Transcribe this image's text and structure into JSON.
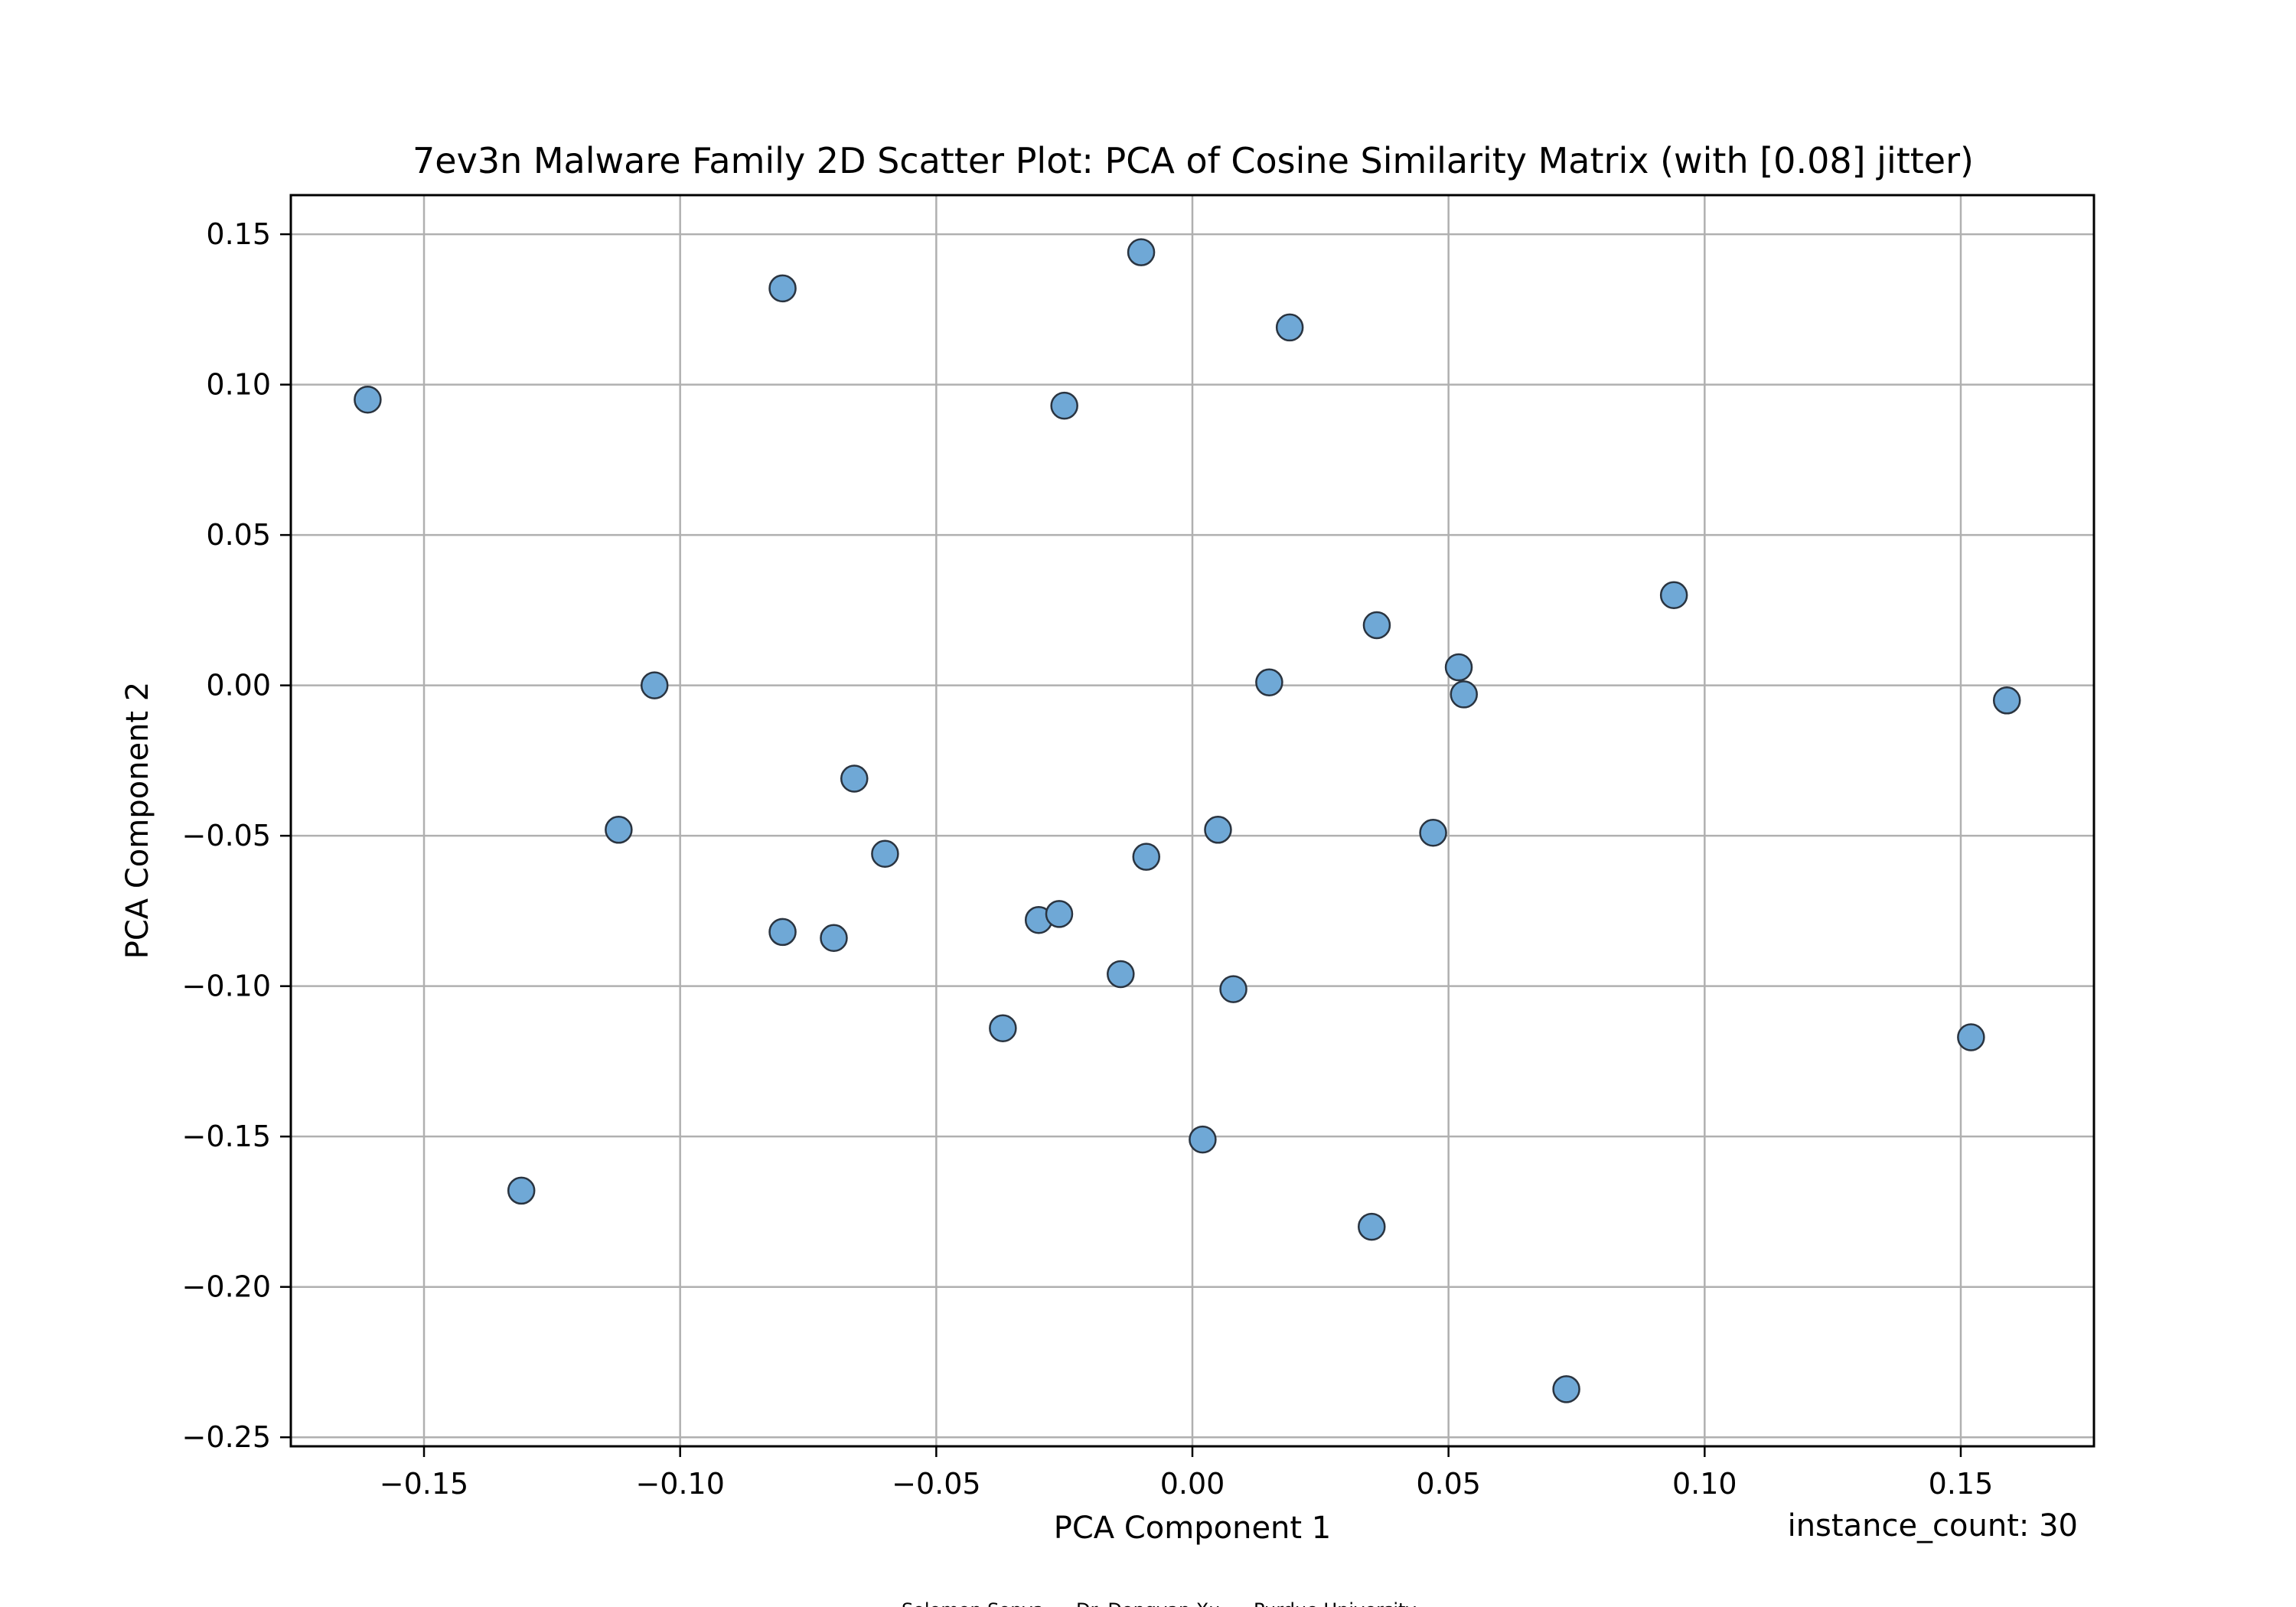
{
  "chart_data": {
    "type": "scatter",
    "title": "7ev3n Malware Family 2D Scatter Plot: PCA of Cosine Similarity Matrix (with [0.08] jitter)",
    "xlabel": "PCA Component 1",
    "ylabel": "PCA Component 2",
    "xlim": [
      -0.176,
      0.176
    ],
    "ylim": [
      -0.253,
      0.163
    ],
    "grid": true,
    "xticks": [
      -0.15,
      -0.1,
      -0.05,
      0.0,
      0.05,
      0.1,
      0.15
    ],
    "xtick_labels": [
      "−0.15",
      "−0.10",
      "−0.05",
      "0.00",
      "0.05",
      "0.10",
      "0.15"
    ],
    "yticks": [
      0.15,
      0.1,
      0.05,
      0.0,
      -0.05,
      -0.1,
      -0.15,
      -0.2,
      -0.25
    ],
    "ytick_labels": [
      "0.15",
      "0.10",
      "0.05",
      "0.00",
      "−0.05",
      "−0.10",
      "−0.15",
      "−0.20",
      "−0.25"
    ],
    "marker_color": "#6fa8d6",
    "marker_edge_color": "#2a3440",
    "points": [
      {
        "x": -0.161,
        "y": 0.095
      },
      {
        "x": -0.08,
        "y": 0.132
      },
      {
        "x": -0.01,
        "y": 0.144
      },
      {
        "x": 0.019,
        "y": 0.119
      },
      {
        "x": -0.025,
        "y": 0.093
      },
      {
        "x": 0.094,
        "y": 0.03
      },
      {
        "x": 0.036,
        "y": 0.02
      },
      {
        "x": 0.052,
        "y": 0.006
      },
      {
        "x": 0.053,
        "y": -0.003
      },
      {
        "x": 0.015,
        "y": 0.001
      },
      {
        "x": -0.105,
        "y": 0.0
      },
      {
        "x": 0.159,
        "y": -0.005
      },
      {
        "x": -0.066,
        "y": -0.031
      },
      {
        "x": -0.112,
        "y": -0.048
      },
      {
        "x": -0.06,
        "y": -0.056
      },
      {
        "x": 0.005,
        "y": -0.048
      },
      {
        "x": 0.047,
        "y": -0.049
      },
      {
        "x": -0.009,
        "y": -0.057
      },
      {
        "x": -0.08,
        "y": -0.082
      },
      {
        "x": -0.07,
        "y": -0.084
      },
      {
        "x": -0.03,
        "y": -0.078
      },
      {
        "x": -0.026,
        "y": -0.076
      },
      {
        "x": -0.014,
        "y": -0.096
      },
      {
        "x": 0.008,
        "y": -0.101
      },
      {
        "x": -0.037,
        "y": -0.114
      },
      {
        "x": 0.152,
        "y": -0.117
      },
      {
        "x": 0.002,
        "y": -0.151
      },
      {
        "x": -0.131,
        "y": -0.168
      },
      {
        "x": 0.035,
        "y": -0.18
      },
      {
        "x": 0.073,
        "y": -0.234
      }
    ]
  },
  "annotations": {
    "instance_count": "instance_count: 30"
  },
  "footer": {
    "author1": "Solomon Sonya",
    "author2": "Dr. Dongyan Xu",
    "institution": "Purdue University"
  }
}
